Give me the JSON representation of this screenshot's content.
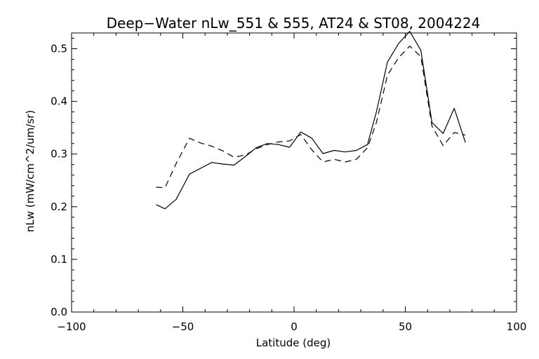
{
  "chart_data": {
    "type": "line",
    "title": "Deep−Water nLw_551 & 555, AT24 & ST08, 2004224",
    "xlabel": "Latitude (deg)",
    "ylabel": "nLw (mW/cm^2/um/sr)",
    "xlim": [
      -100,
      100
    ],
    "ylim": [
      0.0,
      0.53
    ],
    "x_ticks": [
      -100,
      -50,
      0,
      50,
      100
    ],
    "x_tick_labels": [
      "−100",
      "−50",
      "0",
      "50",
      "100"
    ],
    "y_ticks": [
      0.0,
      0.1,
      0.2,
      0.3,
      0.4,
      0.5
    ],
    "y_tick_labels": [
      "0.0",
      "0.1",
      "0.2",
      "0.3",
      "0.4",
      "0.5"
    ],
    "grid": false,
    "colors": {
      "line": "#000000",
      "background": "#ffffff"
    },
    "series": [
      {
        "style": "solid",
        "points": [
          [
            -62,
            0.204
          ],
          [
            -58,
            0.196
          ],
          [
            -53,
            0.214
          ],
          [
            -47,
            0.262
          ],
          [
            -42,
            0.273
          ],
          [
            -37,
            0.284
          ],
          [
            -32,
            0.281
          ],
          [
            -27,
            0.279
          ],
          [
            -22,
            0.295
          ],
          [
            -17,
            0.312
          ],
          [
            -12,
            0.32
          ],
          [
            -7,
            0.318
          ],
          [
            -2,
            0.313
          ],
          [
            3,
            0.342
          ],
          [
            8,
            0.33
          ],
          [
            13,
            0.301
          ],
          [
            18,
            0.307
          ],
          [
            23,
            0.304
          ],
          [
            28,
            0.307
          ],
          [
            33,
            0.318
          ],
          [
            37,
            0.38
          ],
          [
            42,
            0.475
          ],
          [
            47,
            0.51
          ],
          [
            52,
            0.533
          ],
          [
            57,
            0.497
          ],
          [
            62,
            0.36
          ],
          [
            67,
            0.339
          ],
          [
            72,
            0.387
          ],
          [
            77,
            0.322
          ]
        ]
      },
      {
        "style": "dashed",
        "points": [
          [
            -62,
            0.237
          ],
          [
            -58,
            0.236
          ],
          [
            -53,
            0.282
          ],
          [
            -47,
            0.33
          ],
          [
            -42,
            0.321
          ],
          [
            -37,
            0.315
          ],
          [
            -32,
            0.306
          ],
          [
            -27,
            0.294
          ],
          [
            -22,
            0.298
          ],
          [
            -17,
            0.31
          ],
          [
            -12,
            0.318
          ],
          [
            -7,
            0.323
          ],
          [
            -2,
            0.325
          ],
          [
            3,
            0.337
          ],
          [
            8,
            0.308
          ],
          [
            13,
            0.285
          ],
          [
            18,
            0.29
          ],
          [
            23,
            0.285
          ],
          [
            28,
            0.29
          ],
          [
            33,
            0.312
          ],
          [
            37,
            0.36
          ],
          [
            42,
            0.45
          ],
          [
            47,
            0.483
          ],
          [
            52,
            0.505
          ],
          [
            57,
            0.485
          ],
          [
            62,
            0.353
          ],
          [
            67,
            0.316
          ],
          [
            72,
            0.341
          ],
          [
            77,
            0.336
          ]
        ]
      }
    ]
  }
}
